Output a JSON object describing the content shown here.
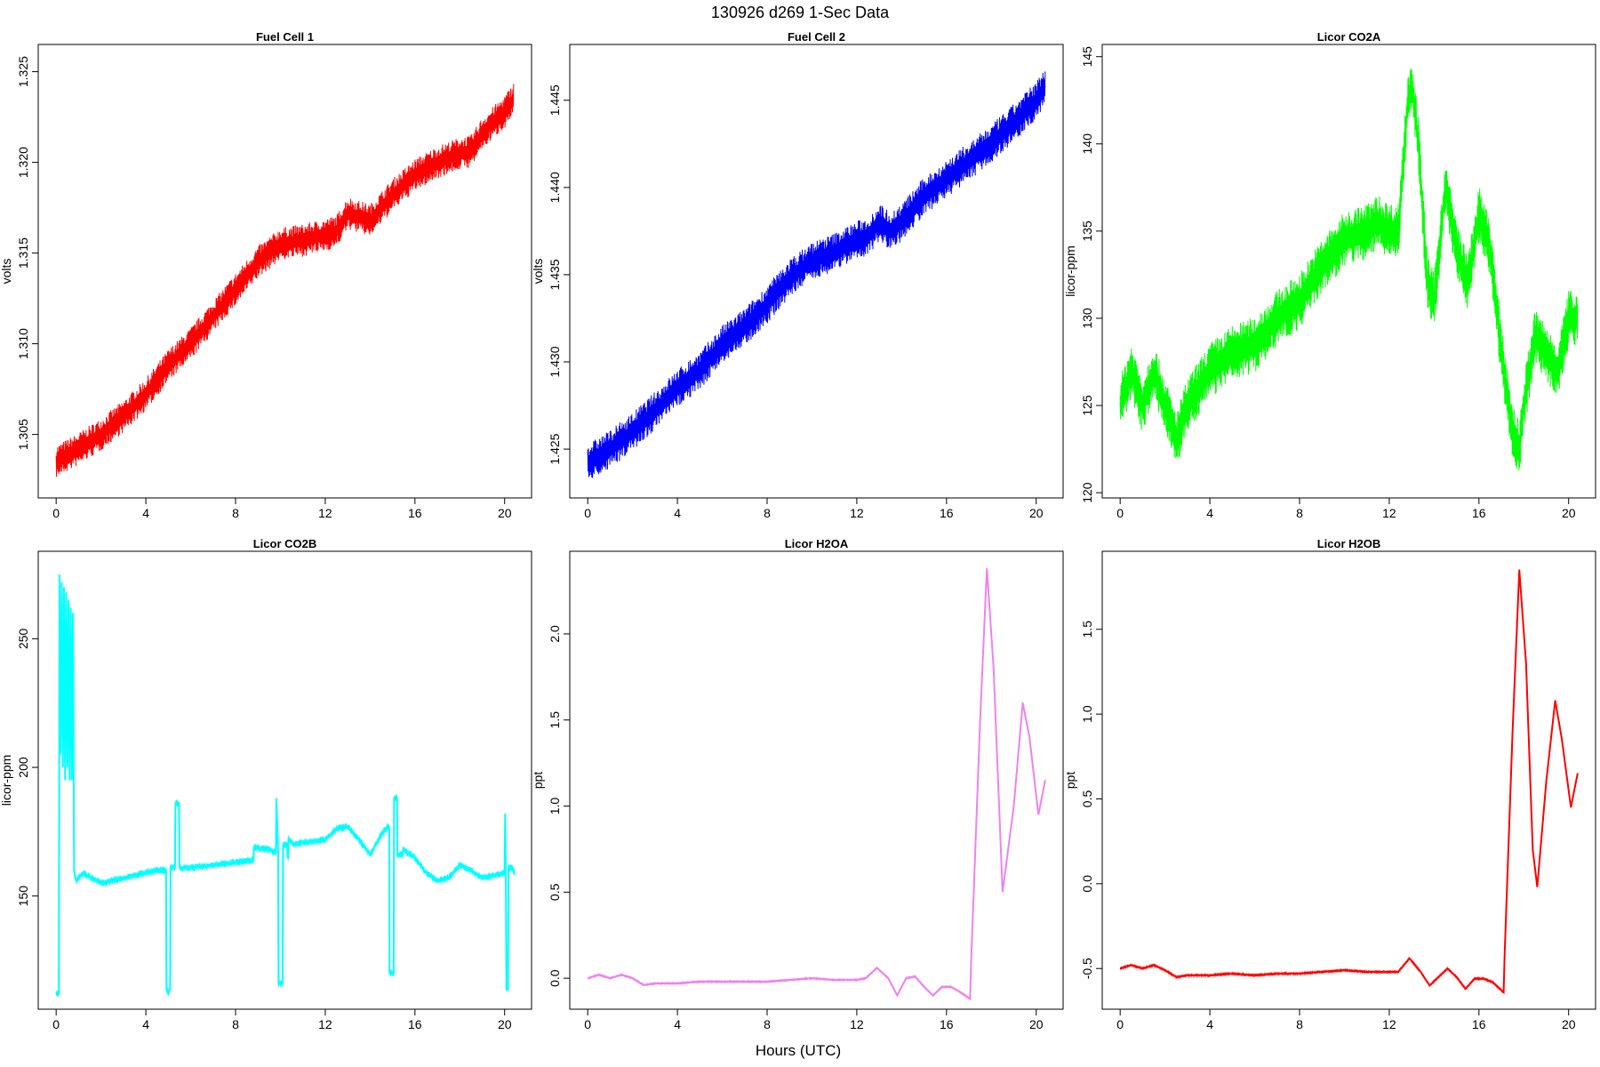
{
  "figure": {
    "title": "130926   d269   1-Sec Data",
    "xlabel": "Hours (UTC)"
  },
  "chart_data": [
    {
      "type": "line",
      "title": "Fuel Cell 1",
      "ylabel": "volts",
      "color": "#ff0000",
      "band": 0.0009,
      "xlim": [
        -0.8,
        21.2
      ],
      "ylim": [
        1.3015,
        1.3265
      ],
      "xticks": [
        0,
        4,
        8,
        12,
        16,
        20
      ],
      "yticks": [
        1.305,
        1.31,
        1.315,
        1.32,
        1.325
      ],
      "ytick_labels": [
        "1.305",
        "1.310",
        "1.315",
        "1.320",
        "1.325"
      ],
      "x": [
        0,
        1,
        2,
        3,
        4,
        5,
        6,
        7,
        8,
        9,
        10,
        11,
        12,
        12.5,
        13,
        13.5,
        14,
        15,
        16,
        17,
        18,
        18.5,
        19,
        19.5,
        20,
        20.4
      ],
      "y": [
        1.3035,
        1.3042,
        1.305,
        1.306,
        1.3072,
        1.3088,
        1.31,
        1.3115,
        1.313,
        1.3145,
        1.3155,
        1.3157,
        1.316,
        1.3162,
        1.3172,
        1.317,
        1.3168,
        1.3182,
        1.3193,
        1.32,
        1.3205,
        1.3206,
        1.3216,
        1.3222,
        1.3228,
        1.3235
      ]
    },
    {
      "type": "line",
      "title": "Fuel Cell 2",
      "ylabel": "volts",
      "color": "#0000ff",
      "band": 0.0011,
      "xlim": [
        -0.8,
        21.2
      ],
      "ylim": [
        1.4222,
        1.4482
      ],
      "xticks": [
        0,
        4,
        8,
        12,
        16,
        20
      ],
      "yticks": [
        1.425,
        1.43,
        1.435,
        1.44,
        1.445
      ],
      "ytick_labels": [
        "1.425",
        "1.430",
        "1.435",
        "1.440",
        "1.445"
      ],
      "x": [
        0,
        1,
        2,
        3,
        4,
        5,
        6,
        7,
        8,
        9,
        10,
        11,
        12,
        12.5,
        13,
        13.5,
        14,
        15,
        16,
        17,
        18,
        19,
        20,
        20.4
      ],
      "y": [
        1.4242,
        1.425,
        1.426,
        1.4272,
        1.4285,
        1.4295,
        1.431,
        1.432,
        1.4333,
        1.4348,
        1.4358,
        1.4363,
        1.437,
        1.4372,
        1.438,
        1.4375,
        1.438,
        1.4395,
        1.4405,
        1.4415,
        1.4425,
        1.4437,
        1.445,
        1.4458
      ]
    },
    {
      "type": "line",
      "title": "Licor CO2A",
      "ylabel": "licor-ppm",
      "color": "#00ff00",
      "band": 1.6,
      "xlim": [
        -0.8,
        21.2
      ],
      "ylim": [
        119.7,
        145.7
      ],
      "xticks": [
        0,
        4,
        8,
        12,
        16,
        20
      ],
      "yticks": [
        120,
        125,
        130,
        135,
        140,
        145
      ],
      "ytick_labels": [
        "120",
        "125",
        "130",
        "135",
        "140",
        "145"
      ],
      "x": [
        0,
        0.5,
        1,
        1.5,
        2,
        2.5,
        3,
        3.5,
        4,
        5,
        6,
        7,
        8,
        9,
        10,
        11,
        11.5,
        12,
        12.4,
        12.8,
        13,
        13.3,
        13.7,
        14,
        14.5,
        15,
        15.5,
        16,
        16.5,
        17,
        17.5,
        17.8,
        18,
        18.5,
        19,
        19.5,
        20,
        20.4
      ],
      "y": [
        125,
        127,
        125,
        127,
        125,
        123,
        125,
        126,
        127,
        128,
        128.5,
        130,
        131,
        133,
        134.5,
        135,
        135.5,
        135,
        135,
        142,
        143.5,
        140,
        132,
        131,
        137.5,
        134,
        132,
        136,
        134,
        128,
        123.5,
        122.5,
        125,
        129,
        128,
        127,
        130,
        130
      ]
    },
    {
      "type": "line",
      "title": "Licor CO2B",
      "ylabel": "licor-ppm",
      "color": "#00ffff",
      "band": 1.5,
      "xlim": [
        -0.8,
        21.2
      ],
      "ylim": [
        106.0,
        284.0
      ],
      "xticks": [
        0,
        4,
        8,
        12,
        16,
        20
      ],
      "yticks": [
        150,
        200,
        250
      ],
      "ytick_labels": [
        "150",
        "200",
        "250"
      ],
      "x": [
        0,
        0.12,
        0.15,
        0.2,
        0.25,
        0.3,
        0.35,
        0.4,
        0.45,
        0.5,
        0.55,
        0.6,
        0.65,
        0.7,
        0.75,
        0.8,
        0.85,
        0.9,
        1.0,
        1.2,
        1.6,
        2.0,
        2.5,
        3.0,
        3.5,
        4.0,
        4.5,
        4.9,
        4.92,
        5.0,
        5.08,
        5.1,
        5.3,
        5.32,
        5.48,
        5.5,
        6,
        7,
        8,
        8.8,
        8.82,
        9.5,
        9.8,
        9.82,
        9.9,
        9.92,
        10.1,
        10.12,
        10.3,
        10.32,
        10.35,
        10.36,
        10.6,
        11,
        11.5,
        12,
        12.5,
        13,
        13.5,
        14,
        14.5,
        14.8,
        14.85,
        14.87,
        15.05,
        15.07,
        15.2,
        15.22,
        15.45,
        15.47,
        16,
        16.5,
        17,
        17.5,
        18,
        18.5,
        19,
        19.5,
        20,
        20.02,
        20.05,
        20.08,
        20.15,
        20.17,
        20.35,
        20.37,
        20.45
      ],
      "y": [
        112,
        112,
        275,
        205,
        272,
        200,
        270,
        195,
        268,
        200,
        265,
        195,
        262,
        195,
        260,
        160,
        157,
        156,
        157,
        159,
        157,
        155,
        156,
        157,
        158,
        159,
        160,
        160,
        114,
        112,
        114,
        161,
        161,
        186,
        186,
        161,
        161,
        162,
        163,
        164,
        169,
        168,
        167,
        188,
        167,
        116,
        116,
        170,
        170,
        165,
        165,
        172,
        170,
        171,
        171,
        172,
        176,
        177,
        172,
        166,
        174,
        177,
        177,
        120,
        120,
        188,
        188,
        166,
        166,
        168,
        165,
        159,
        156,
        157,
        162,
        160,
        157,
        158,
        159,
        182,
        161,
        114,
        114,
        161,
        161,
        160,
        159
      ]
    },
    {
      "type": "line",
      "title": "Licor H2OA",
      "ylabel": "ppt",
      "color": "#ee82ee",
      "band": 0.004,
      "xlim": [
        -0.8,
        21.2
      ],
      "ylim": [
        -0.18,
        2.48
      ],
      "xticks": [
        0,
        4,
        8,
        12,
        16,
        20
      ],
      "yticks": [
        0.0,
        0.5,
        1.0,
        1.5,
        2.0
      ],
      "ytick_labels": [
        "0.0",
        "0.5",
        "1.0",
        "1.5",
        "2.0"
      ],
      "x": [
        0,
        0.5,
        1,
        1.5,
        2,
        2.5,
        3,
        4,
        5,
        6,
        7,
        8,
        9,
        10,
        11,
        12,
        12.4,
        12.9,
        13.4,
        13.8,
        14.2,
        14.6,
        15.0,
        15.4,
        15.8,
        16.2,
        16.6,
        17.05,
        17.1,
        17.5,
        17.8,
        18.1,
        18.5,
        19.0,
        19.4,
        19.7,
        20.1,
        20.4
      ],
      "y": [
        0.0,
        0.02,
        0.0,
        0.02,
        0.0,
        -0.04,
        -0.03,
        -0.03,
        -0.02,
        -0.02,
        -0.02,
        -0.02,
        -0.01,
        0.0,
        -0.01,
        -0.01,
        0.0,
        0.06,
        0.0,
        -0.1,
        0.0,
        0.01,
        -0.05,
        -0.1,
        -0.05,
        -0.05,
        -0.08,
        -0.12,
        0.1,
        1.5,
        2.38,
        1.8,
        0.5,
        1.0,
        1.6,
        1.4,
        0.95,
        1.15
      ]
    },
    {
      "type": "line",
      "title": "Licor H2OB",
      "ylabel": "ppt",
      "color": "#ff0000",
      "band": 0.005,
      "xlim": [
        -0.8,
        21.2
      ],
      "ylim": [
        -0.74,
        1.96
      ],
      "xticks": [
        0,
        4,
        8,
        12,
        16,
        20
      ],
      "yticks": [
        -0.5,
        0.0,
        0.5,
        1.0,
        1.5
      ],
      "ytick_labels": [
        "-0.5",
        "0.0",
        "0.5",
        "1.0",
        "1.5"
      ],
      "x": [
        0,
        0.5,
        1,
        1.5,
        2,
        2.5,
        3,
        4,
        5,
        6,
        7,
        8,
        9,
        10,
        11,
        12,
        12.4,
        12.9,
        13.4,
        13.8,
        14.2,
        14.6,
        15.0,
        15.4,
        15.8,
        16.2,
        16.6,
        17.1,
        17.15,
        17.5,
        17.8,
        18.1,
        18.4,
        18.6,
        19.0,
        19.4,
        19.7,
        20.1,
        20.4
      ],
      "y": [
        -0.5,
        -0.48,
        -0.5,
        -0.48,
        -0.51,
        -0.55,
        -0.54,
        -0.54,
        -0.53,
        -0.54,
        -0.53,
        -0.53,
        -0.52,
        -0.51,
        -0.52,
        -0.52,
        -0.52,
        -0.44,
        -0.52,
        -0.6,
        -0.55,
        -0.5,
        -0.55,
        -0.62,
        -0.56,
        -0.56,
        -0.58,
        -0.64,
        -0.4,
        0.9,
        1.85,
        1.3,
        0.2,
        -0.02,
        0.6,
        1.08,
        0.85,
        0.45,
        0.65
      ]
    }
  ]
}
